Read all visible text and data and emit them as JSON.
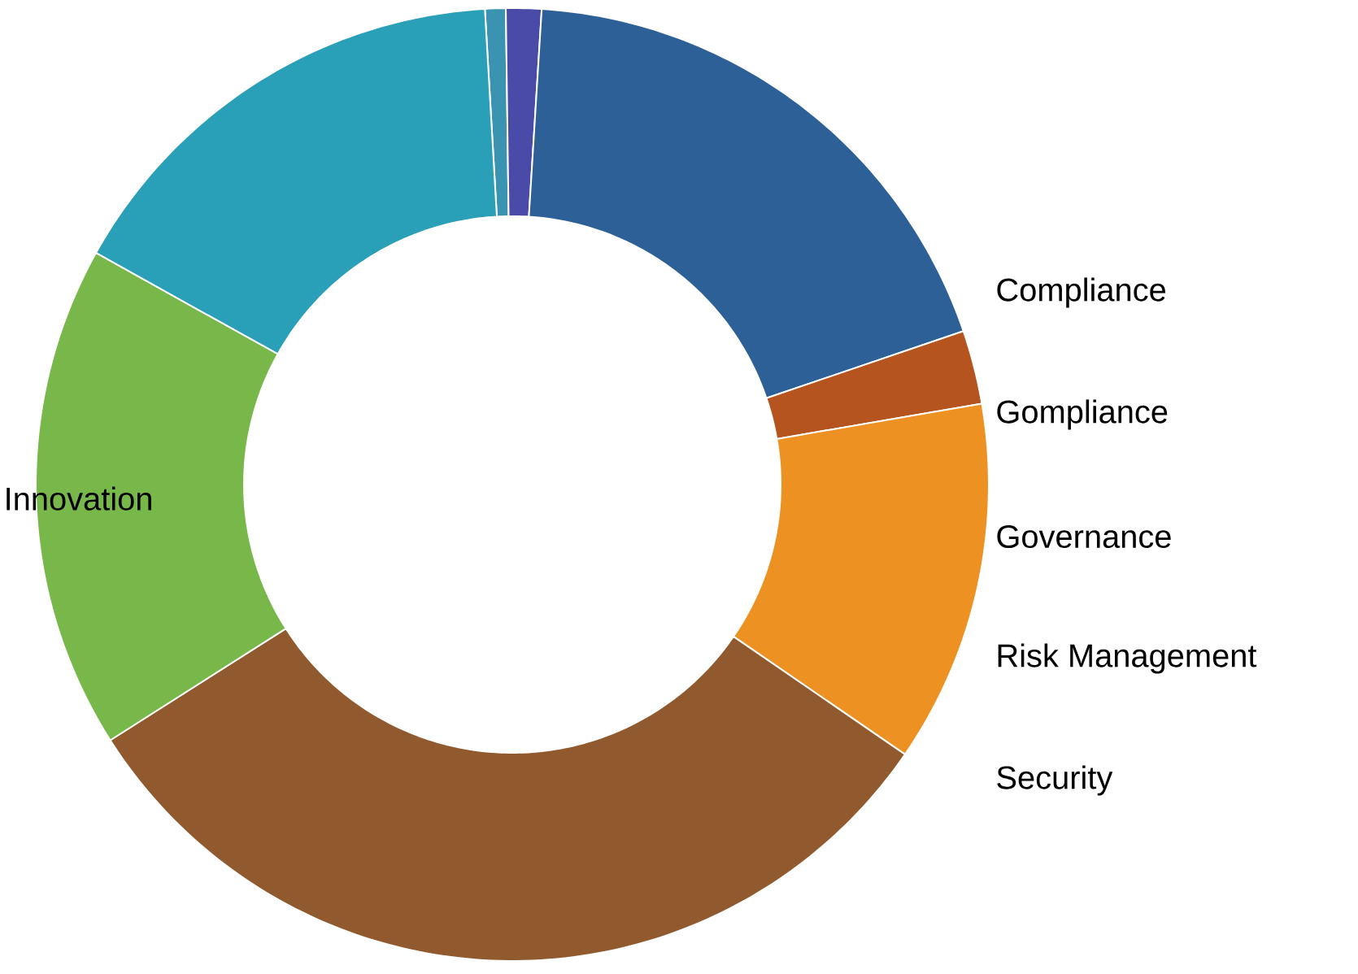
{
  "chart_data": {
    "type": "donut",
    "categories": [
      null,
      null,
      null,
      null,
      null,
      null,
      "Innovation",
      null
    ],
    "values": [
      0.7,
      1.2,
      18.8,
      2.5,
      12.3,
      31.4,
      17.1,
      16.0
    ],
    "colors": [
      "#3a93b0",
      "#4a4aa8",
      "#2d6096",
      "#b5541e",
      "#ee9123",
      "#905a2e",
      "#78b84a",
      "#2aa0b8"
    ],
    "annotations": [
      "Compliance",
      "Gompliance",
      "Governance",
      "Risk Management",
      "Security"
    ]
  }
}
